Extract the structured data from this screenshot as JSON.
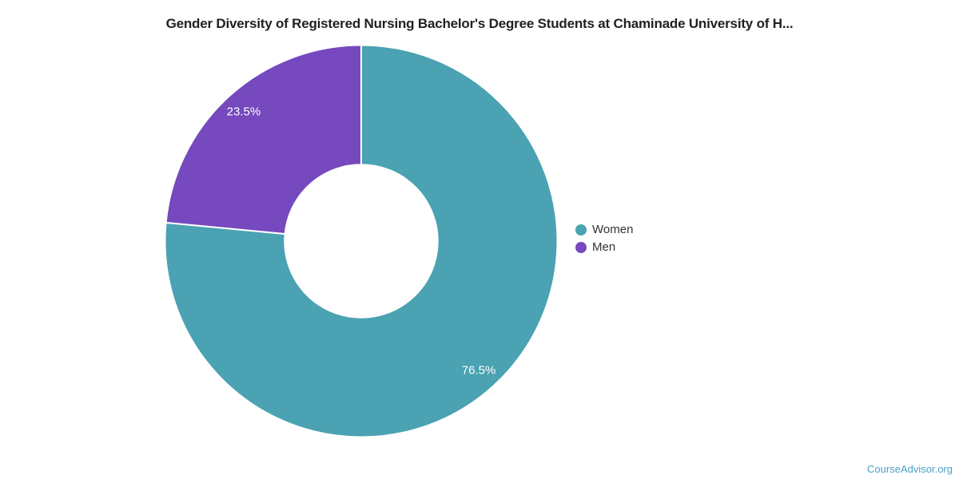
{
  "title": "Gender Diversity of Registered Nursing Bachelor's Degree Students at Chaminade University of H...",
  "source": {
    "link_label": "CourseAdvisor.org",
    "link_color": "#4aa0c6"
  },
  "legend": {
    "position": "right",
    "items": [
      {
        "label": "Women"
      },
      {
        "label": "Men"
      }
    ]
  },
  "colors": {
    "women": "#4aa2b2",
    "men": "#7649be",
    "title_text": "#212121",
    "legend_text": "#333333",
    "slice_label_text": "#ffffff",
    "background": "#ffffff"
  },
  "chart_data": {
    "type": "pie",
    "subtype": "donut",
    "title": "Gender Diversity of Registered Nursing Bachelor's Degree Students at Chaminade University of H...",
    "start_angle_deg": 0,
    "direction": "clockwise",
    "inner_radius_ratio": 0.39,
    "legend_position": "right",
    "label_style": "percent-inside",
    "slices": [
      {
        "label": "Women",
        "value": 76.5,
        "display": "76.5%",
        "color": "#4aa2b2"
      },
      {
        "label": "Men",
        "value": 23.5,
        "display": "23.5%",
        "color": "#7649be"
      }
    ]
  }
}
